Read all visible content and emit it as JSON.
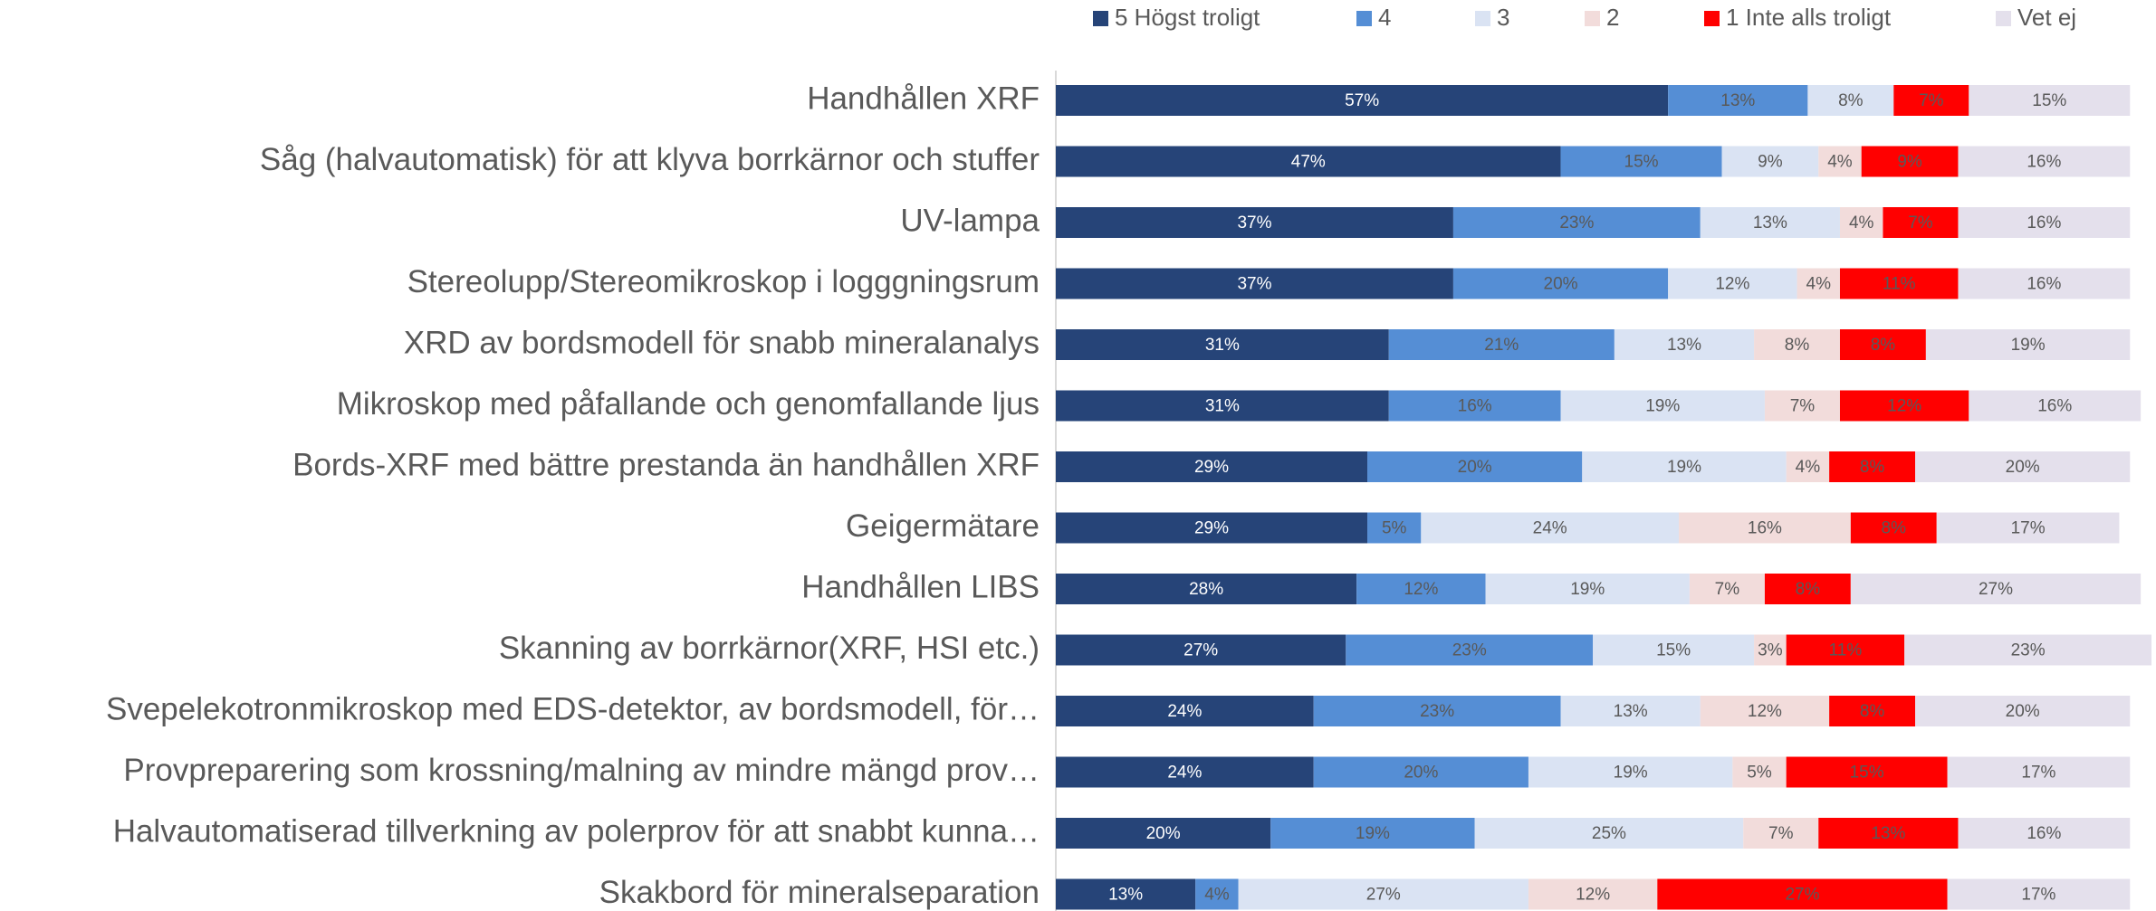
{
  "chart_data": {
    "type": "stacked_barh",
    "categories": [
      "Handhållen XRF",
      "Såg (halvautomatisk) för att klyva borrkärnor och stuffer",
      "UV-lampa",
      "Stereolupp/Stereomikroskop i logggningsrum",
      "XRD av bordsmodell för snabb mineralanalys",
      "Mikroskop med påfallande och genomfallande ljus",
      "Bords-XRF med bättre prestanda än handhållen XRF",
      "Geigermätare",
      "Handhållen LIBS",
      "Skanning av borrkärnor(XRF, HSI etc.)",
      "Svepelekotronmikroskop med EDS-detektor, av bordsmodell, för…",
      "Provpreparering som krossning/malning av mindre mängd prov…",
      "Halvautomatiserad tillverkning av polerprov för att snabbt kunna…",
      "Skakbord för mineralseparation"
    ],
    "series": [
      {
        "name": "5 Högst troligt",
        "color": "#264478",
        "values": [
          57,
          47,
          37,
          37,
          31,
          31,
          29,
          29,
          28,
          27,
          24,
          24,
          20,
          13
        ],
        "value_labels": [
          "57%",
          "47%",
          "37%",
          "37%",
          "31%",
          "31%",
          "29%",
          "29%",
          "28%",
          "27%",
          "24%",
          "24%",
          "20%",
          "13%"
        ]
      },
      {
        "name": "4",
        "color": "#558ed5",
        "values": [
          13,
          15,
          23,
          20,
          21,
          16,
          20,
          5,
          12,
          23,
          23,
          20,
          19,
          4
        ],
        "value_labels": [
          "13%",
          "15%",
          "23%",
          "20%",
          "21%",
          "16%",
          "20%",
          "5%",
          "12%",
          "23%",
          "23%",
          "20%",
          "19%",
          "4%"
        ]
      },
      {
        "name": "3",
        "color": "#dae3f3",
        "values": [
          8,
          9,
          13,
          12,
          13,
          19,
          19,
          24,
          19,
          15,
          13,
          19,
          25,
          27
        ],
        "value_labels": [
          "8%",
          "9%",
          "13%",
          "12%",
          "13%",
          "19%",
          "19%",
          "24%",
          "19%",
          "15%",
          "13%",
          "19%",
          "25%",
          "27%"
        ]
      },
      {
        "name": "2",
        "color": "#f2dcdb",
        "values": [
          0,
          4,
          4,
          4,
          8,
          7,
          4,
          16,
          7,
          3,
          12,
          5,
          7,
          12
        ],
        "value_labels": [
          null,
          "4%",
          "4%",
          "4%",
          "8%",
          "7%",
          "4%",
          "16%",
          "7%",
          "3%",
          "12%",
          "5%",
          "7%",
          "12%"
        ]
      },
      {
        "name": "1 Inte alls troligt",
        "color": "#ff0000",
        "values": [
          7,
          9,
          7,
          11,
          8,
          12,
          8,
          8,
          8,
          11,
          8,
          15,
          13,
          27
        ],
        "value_labels": [
          "7%",
          "9%",
          "7%",
          "11%",
          "8%",
          "12%",
          "8%",
          "8%",
          "8%",
          "11%",
          "8%",
          "15%",
          "13%",
          "27%"
        ]
      },
      {
        "name": "Vet ej",
        "color": "#e4e0ec",
        "values": [
          15,
          16,
          16,
          16,
          19,
          16,
          20,
          17,
          27,
          23,
          20,
          17,
          16,
          17
        ],
        "value_labels": [
          "15%",
          "16%",
          "16%",
          "16%",
          "19%",
          "16%",
          "20%",
          "17%",
          "27%",
          "23%",
          "20%",
          "17%",
          "16%",
          "17%"
        ]
      }
    ]
  }
}
